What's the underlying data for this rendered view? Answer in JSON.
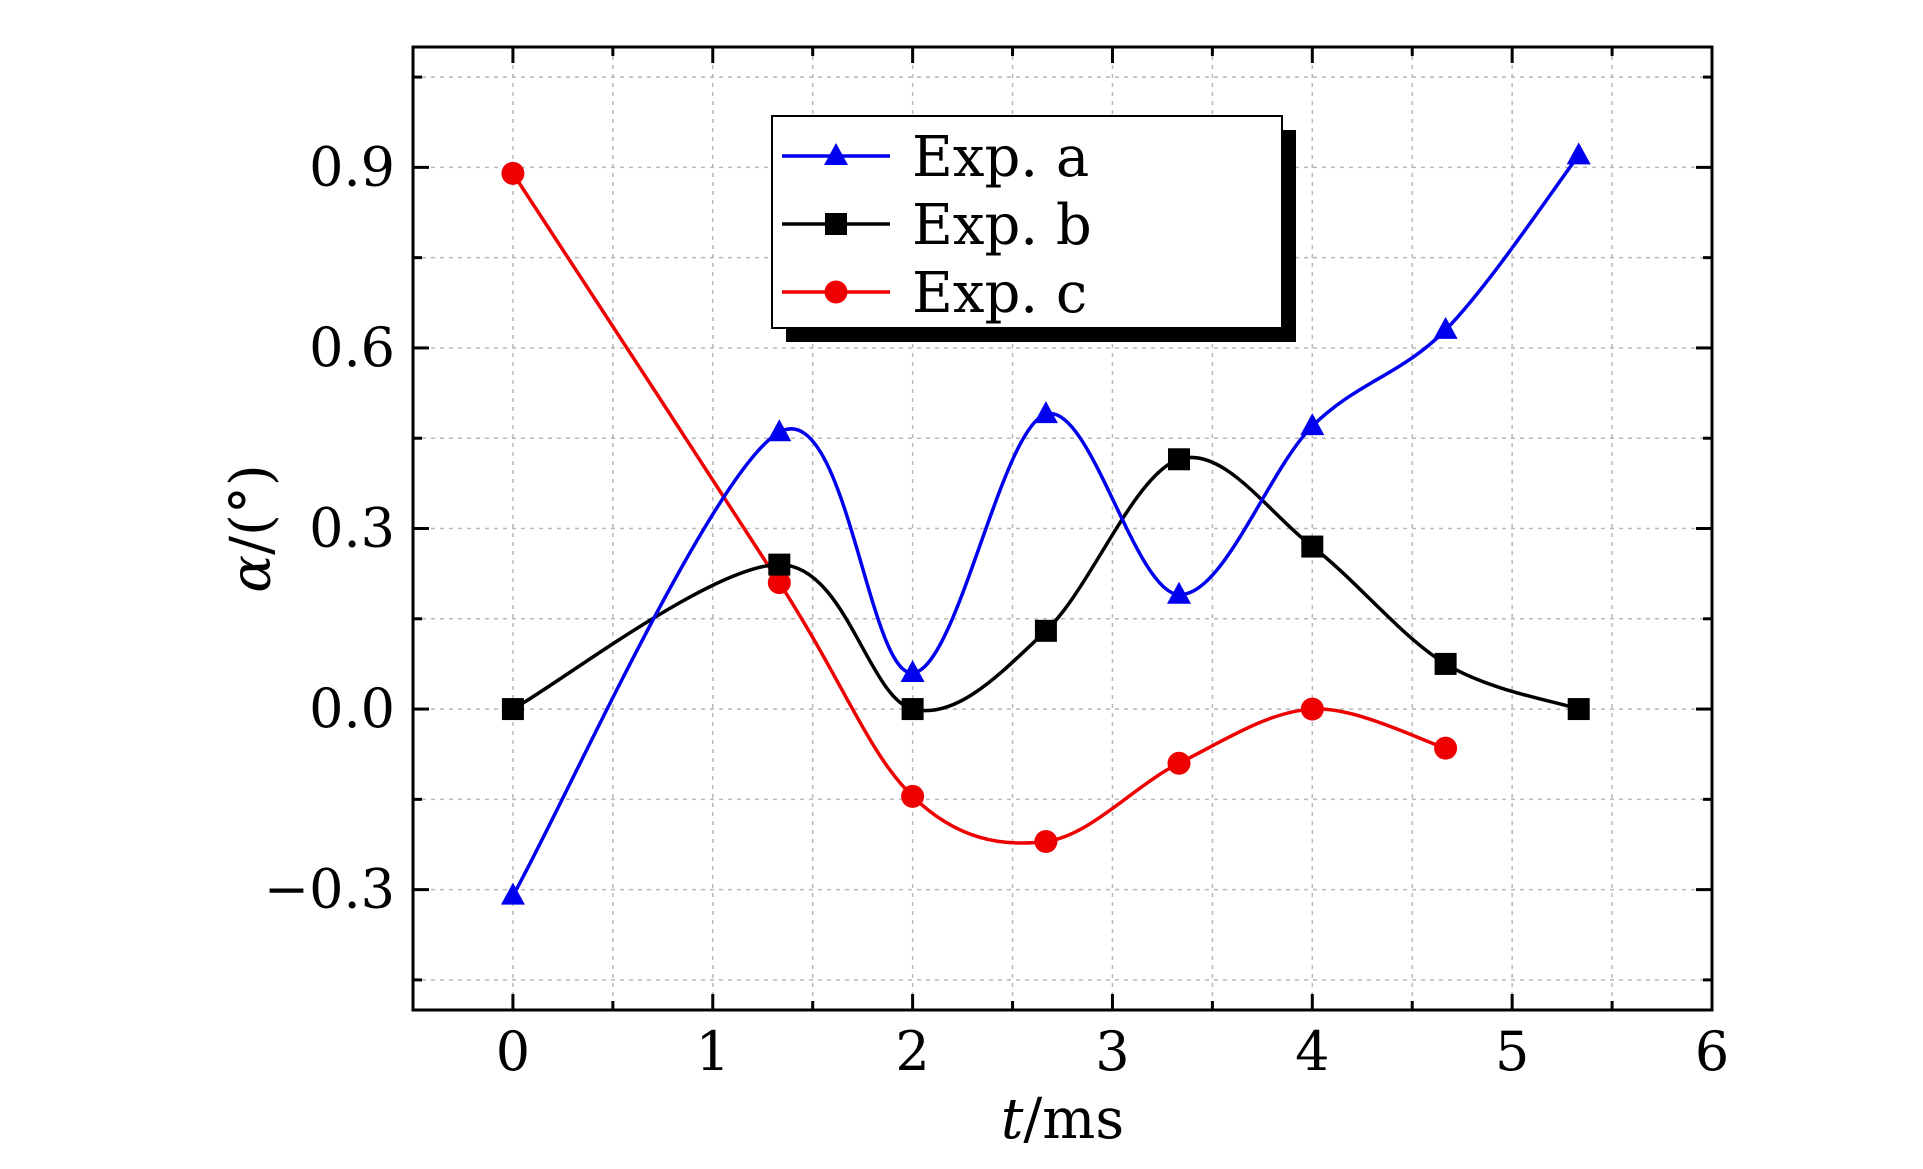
{
  "chart_data": {
    "type": "line",
    "title": "",
    "xlabel": {
      "italic": "t",
      "rest": "/ms"
    },
    "ylabel": {
      "italic": "α",
      "rest": "/(°)"
    },
    "xlim": [
      -0.5,
      6
    ],
    "ylim": [
      -0.5,
      1.1
    ],
    "xticks": [
      0,
      1,
      2,
      3,
      4,
      5,
      6
    ],
    "xtick_labels": [
      "0",
      "1",
      "2",
      "3",
      "4",
      "5",
      "6"
    ],
    "yticks": [
      -0.3,
      0.0,
      0.3,
      0.6,
      0.9
    ],
    "ytick_labels": [
      "−0.3",
      "0.0",
      "0.3",
      "0.6",
      "0.9"
    ],
    "grid": true,
    "legend_position": "top-center",
    "series": [
      {
        "name": "Exp. a",
        "color": "#0000ee",
        "marker": "triangle",
        "x": [
          0,
          1.333,
          2,
          2.667,
          3.333,
          4,
          4.667,
          5.333
        ],
        "y": [
          -0.31,
          0.46,
          0.06,
          0.49,
          0.19,
          0.47,
          0.63,
          0.92
        ]
      },
      {
        "name": "Exp. b",
        "color": "#000000",
        "marker": "square",
        "x": [
          0,
          1.333,
          2,
          2.667,
          3.333,
          4,
          4.667,
          5.333
        ],
        "y": [
          0.0,
          0.24,
          0.0,
          0.13,
          0.415,
          0.27,
          0.075,
          0.0
        ]
      },
      {
        "name": "Exp. c",
        "color": "#ee0000",
        "marker": "circle",
        "x": [
          0,
          1.333,
          2,
          2.667,
          3.333,
          4,
          4.667
        ],
        "y": [
          0.89,
          0.21,
          -0.145,
          -0.22,
          -0.09,
          0.0,
          -0.065
        ]
      }
    ]
  }
}
